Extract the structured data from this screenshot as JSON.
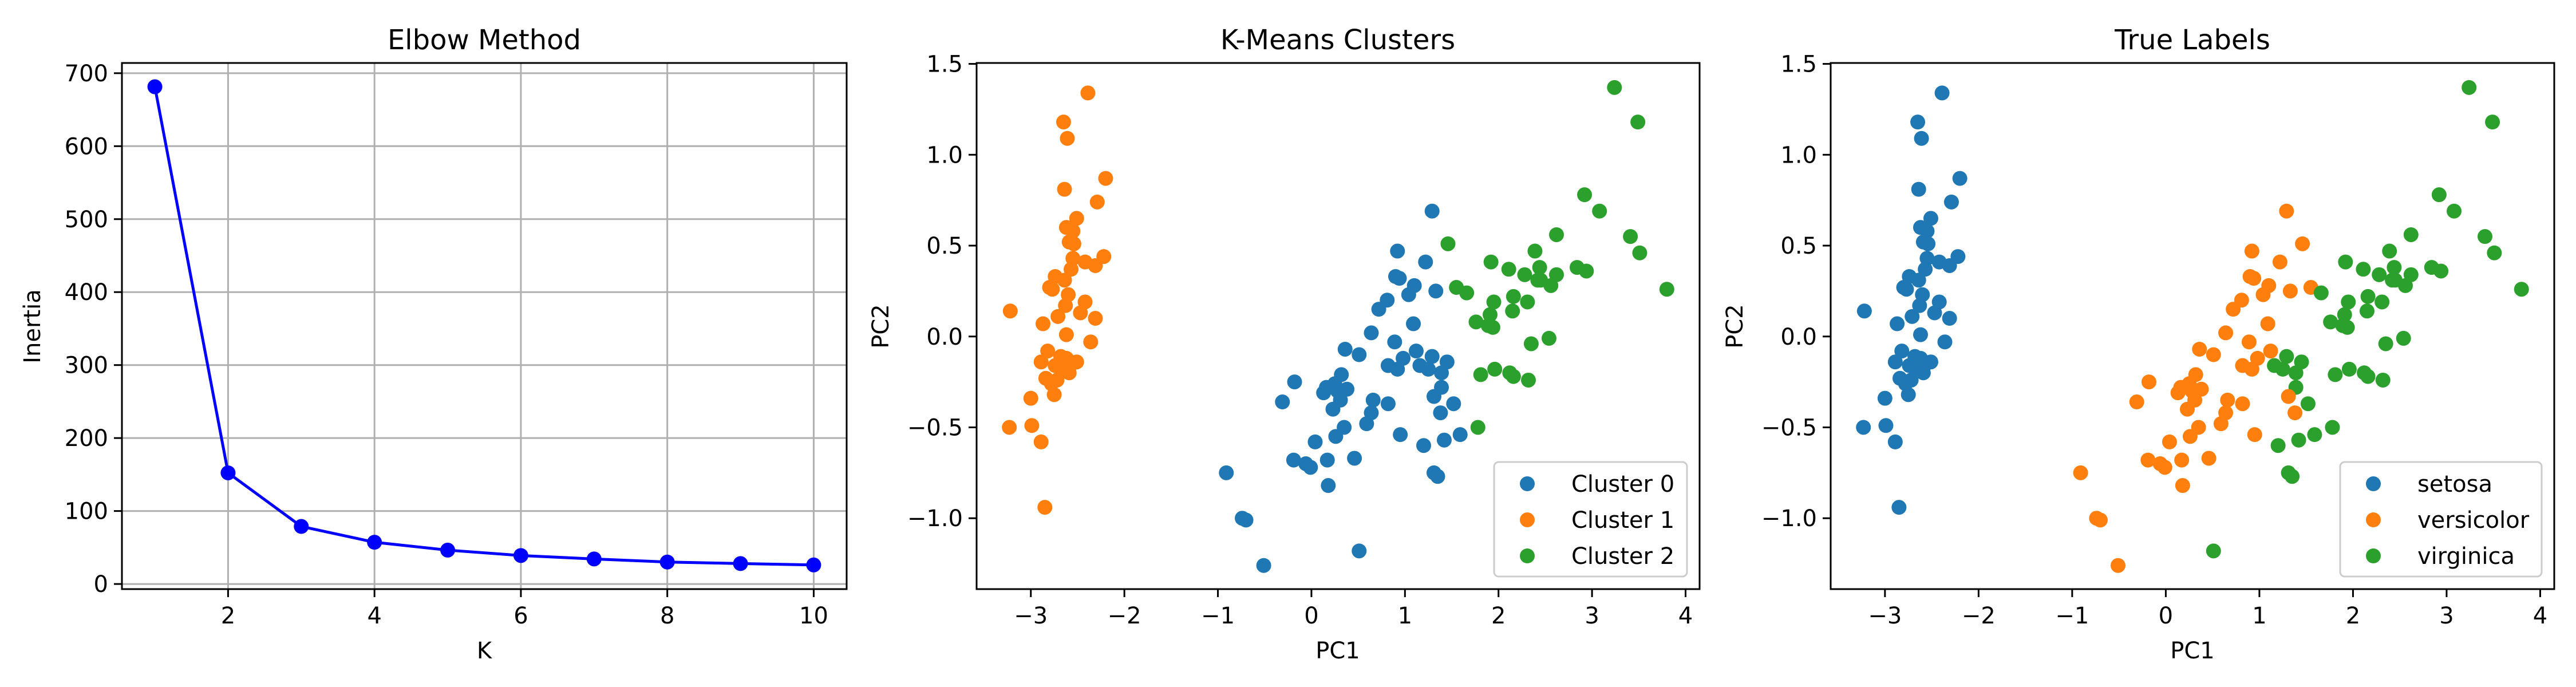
{
  "chart_data": [
    {
      "type": "line",
      "title": "Elbow Method",
      "xlabel": "K",
      "ylabel": "Inertia",
      "x": [
        1,
        2,
        3,
        4,
        5,
        6,
        7,
        8,
        9,
        10
      ],
      "values": [
        681.4,
        152.3,
        78.9,
        57.2,
        46.4,
        39.0,
        34.3,
        30.1,
        28.0,
        26.1
      ],
      "xlim": [
        0.55,
        10.45
      ],
      "ylim": [
        -7,
        714
      ],
      "xticks": [
        2,
        4,
        6,
        8,
        10
      ],
      "yticks": [
        0,
        100,
        200,
        300,
        400,
        500,
        600,
        700
      ],
      "grid": true,
      "color": "#0000ff",
      "marker": "circle"
    },
    {
      "type": "scatter",
      "title": "K-Means Clusters",
      "xlabel": "PC1",
      "ylabel": "PC2",
      "xlim": [
        -3.58,
        4.15
      ],
      "ylim": [
        -1.39,
        1.505
      ],
      "xticks": [
        -3,
        -2,
        -1,
        0,
        1,
        2,
        3,
        4
      ],
      "yticks": [
        -1.0,
        -0.5,
        0.0,
        0.5,
        1.0,
        1.5
      ],
      "grid": false,
      "color_by": "cluster",
      "legend": {
        "placement": "lower-right",
        "entries": [
          "Cluster 0",
          "Cluster 1",
          "Cluster 2"
        ]
      },
      "colors": [
        "#1f77b4",
        "#ff7f0e",
        "#2ca02c"
      ]
    },
    {
      "type": "scatter",
      "title": "True Labels",
      "xlabel": "PC1",
      "ylabel": "PC2",
      "xlim": [
        -3.58,
        4.15
      ],
      "ylim": [
        -1.39,
        1.505
      ],
      "xticks": [
        -3,
        -2,
        -1,
        0,
        1,
        2,
        3,
        4
      ],
      "yticks": [
        -1.0,
        -0.5,
        0.0,
        0.5,
        1.0,
        1.5
      ],
      "grid": false,
      "color_by": "label",
      "legend": {
        "placement": "lower-right",
        "entries": [
          "setosa",
          "versicolor",
          "virginica"
        ]
      },
      "colors": [
        "#1f77b4",
        "#ff7f0e",
        "#2ca02c"
      ]
    }
  ],
  "points_fields": [
    "PC1",
    "PC2",
    "cluster",
    "label"
  ],
  "points": [
    [
      -2.39,
      1.34,
      1,
      0
    ],
    [
      -2.65,
      1.18,
      1,
      0
    ],
    [
      -2.61,
      1.09,
      1,
      0
    ],
    [
      -2.2,
      0.87,
      1,
      0
    ],
    [
      -2.64,
      0.81,
      1,
      0
    ],
    [
      -2.29,
      0.74,
      1,
      0
    ],
    [
      -2.51,
      0.65,
      1,
      0
    ],
    [
      -2.62,
      0.6,
      1,
      0
    ],
    [
      -2.55,
      0.58,
      1,
      0
    ],
    [
      -2.59,
      0.52,
      1,
      0
    ],
    [
      -2.54,
      0.51,
      1,
      0
    ],
    [
      -2.22,
      0.44,
      1,
      0
    ],
    [
      -2.55,
      0.43,
      1,
      0
    ],
    [
      -2.42,
      0.41,
      1,
      0
    ],
    [
      -2.31,
      0.39,
      1,
      0
    ],
    [
      -2.57,
      0.37,
      1,
      0
    ],
    [
      -2.74,
      0.33,
      1,
      0
    ],
    [
      -2.64,
      0.31,
      1,
      0
    ],
    [
      -2.8,
      0.27,
      1,
      0
    ],
    [
      -2.77,
      0.26,
      1,
      0
    ],
    [
      -2.6,
      0.23,
      1,
      0
    ],
    [
      -2.42,
      0.19,
      1,
      0
    ],
    [
      -2.63,
      0.17,
      1,
      0
    ],
    [
      -2.47,
      0.13,
      1,
      0
    ],
    [
      -2.71,
      0.11,
      1,
      0
    ],
    [
      -2.31,
      0.1,
      1,
      0
    ],
    [
      -3.22,
      0.14,
      1,
      0
    ],
    [
      -2.87,
      0.07,
      1,
      0
    ],
    [
      -2.62,
      0.01,
      1,
      0
    ],
    [
      -2.36,
      -0.03,
      1,
      0
    ],
    [
      -2.82,
      -0.08,
      1,
      0
    ],
    [
      -2.89,
      -0.14,
      1,
      0
    ],
    [
      -2.68,
      -0.11,
      1,
      0
    ],
    [
      -2.62,
      -0.12,
      1,
      0
    ],
    [
      -2.51,
      -0.14,
      1,
      0
    ],
    [
      -2.74,
      -0.16,
      1,
      0
    ],
    [
      -2.59,
      -0.2,
      1,
      0
    ],
    [
      -2.84,
      -0.23,
      1,
      0
    ],
    [
      -2.72,
      -0.24,
      1,
      0
    ],
    [
      -2.75,
      -0.32,
      1,
      0
    ],
    [
      -3.0,
      -0.34,
      1,
      0
    ],
    [
      -3.23,
      -0.5,
      1,
      0
    ],
    [
      -2.99,
      -0.49,
      1,
      0
    ],
    [
      -2.89,
      -0.58,
      1,
      0
    ],
    [
      -2.85,
      -0.94,
      1,
      0
    ],
    [
      -2.66,
      -0.18,
      1,
      0
    ],
    [
      -2.78,
      -0.26,
      1,
      0
    ],
    [
      -2.69,
      -0.16,
      1,
      0
    ],
    [
      -2.58,
      -0.16,
      1,
      0
    ],
    [
      -2.65,
      -0.14,
      1,
      0
    ],
    [
      1.29,
      0.69,
      0,
      1
    ],
    [
      0.92,
      0.47,
      0,
      1
    ],
    [
      1.22,
      0.41,
      0,
      1
    ],
    [
      0.9,
      0.33,
      0,
      1
    ],
    [
      0.94,
      0.32,
      0,
      1
    ],
    [
      1.1,
      0.28,
      0,
      1
    ],
    [
      1.04,
      0.23,
      0,
      1
    ],
    [
      1.33,
      0.25,
      0,
      1
    ],
    [
      0.81,
      0.2,
      0,
      1
    ],
    [
      0.72,
      0.15,
      0,
      1
    ],
    [
      1.09,
      0.07,
      0,
      1
    ],
    [
      0.64,
      0.02,
      0,
      1
    ],
    [
      0.89,
      -0.03,
      0,
      1
    ],
    [
      0.36,
      -0.07,
      0,
      1
    ],
    [
      0.51,
      -0.1,
      0,
      1
    ],
    [
      1.12,
      -0.08,
      0,
      1
    ],
    [
      0.98,
      -0.12,
      0,
      1
    ],
    [
      0.82,
      -0.16,
      0,
      1
    ],
    [
      0.92,
      -0.18,
      0,
      1
    ],
    [
      1.16,
      -0.16,
      0,
      2
    ],
    [
      1.29,
      -0.11,
      0,
      2
    ],
    [
      1.45,
      -0.14,
      0,
      2
    ],
    [
      1.25,
      -0.18,
      0,
      2
    ],
    [
      1.39,
      -0.2,
      0,
      2
    ],
    [
      0.32,
      -0.21,
      0,
      1
    ],
    [
      -0.18,
      -0.25,
      0,
      1
    ],
    [
      0.25,
      -0.26,
      0,
      1
    ],
    [
      0.13,
      -0.31,
      0,
      1
    ],
    [
      0.28,
      -0.3,
      0,
      1
    ],
    [
      0.38,
      -0.29,
      0,
      1
    ],
    [
      0.31,
      -0.35,
      0,
      1
    ],
    [
      1.39,
      -0.28,
      0,
      2
    ],
    [
      1.31,
      -0.33,
      0,
      1
    ],
    [
      1.52,
      -0.37,
      0,
      2
    ],
    [
      -0.31,
      -0.36,
      0,
      1
    ],
    [
      0.66,
      -0.35,
      0,
      1
    ],
    [
      0.82,
      -0.37,
      0,
      1
    ],
    [
      0.23,
      -0.4,
      0,
      1
    ],
    [
      0.64,
      -0.42,
      0,
      1
    ],
    [
      1.38,
      -0.42,
      0,
      1
    ],
    [
      0.35,
      -0.5,
      0,
      1
    ],
    [
      0.59,
      -0.48,
      0,
      1
    ],
    [
      0.26,
      -0.55,
      0,
      1
    ],
    [
      0.95,
      -0.54,
      0,
      1
    ],
    [
      1.59,
      -0.54,
      0,
      2
    ],
    [
      0.04,
      -0.58,
      0,
      1
    ],
    [
      1.42,
      -0.57,
      0,
      2
    ],
    [
      1.2,
      -0.6,
      0,
      2
    ],
    [
      -0.19,
      -0.68,
      0,
      1
    ],
    [
      -0.06,
      -0.7,
      0,
      1
    ],
    [
      -0.01,
      -0.72,
      0,
      1
    ],
    [
      0.17,
      -0.68,
      0,
      1
    ],
    [
      0.46,
      -0.67,
      0,
      1
    ],
    [
      1.31,
      -0.75,
      0,
      2
    ],
    [
      1.35,
      -0.77,
      0,
      2
    ],
    [
      0.18,
      -0.82,
      0,
      1
    ],
    [
      -0.91,
      -0.75,
      0,
      1
    ],
    [
      -0.74,
      -1.0,
      0,
      1
    ],
    [
      -0.7,
      -1.01,
      0,
      1
    ],
    [
      -0.51,
      -1.26,
      0,
      1
    ],
    [
      0.51,
      -1.18,
      0,
      2
    ],
    [
      0.16,
      -0.28,
      0,
      1
    ],
    [
      3.24,
      1.37,
      2,
      2
    ],
    [
      3.49,
      1.18,
      2,
      2
    ],
    [
      2.92,
      0.78,
      2,
      2
    ],
    [
      3.08,
      0.69,
      2,
      2
    ],
    [
      1.46,
      0.51,
      2,
      1
    ],
    [
      3.41,
      0.55,
      2,
      2
    ],
    [
      2.62,
      0.56,
      2,
      2
    ],
    [
      3.51,
      0.46,
      2,
      2
    ],
    [
      1.92,
      0.41,
      2,
      2
    ],
    [
      2.11,
      0.37,
      2,
      2
    ],
    [
      2.39,
      0.47,
      2,
      2
    ],
    [
      2.44,
      0.38,
      2,
      2
    ],
    [
      2.28,
      0.34,
      2,
      2
    ],
    [
      2.62,
      0.34,
      2,
      2
    ],
    [
      2.84,
      0.38,
      2,
      2
    ],
    [
      2.94,
      0.36,
      2,
      2
    ],
    [
      2.42,
      0.31,
      2,
      2
    ],
    [
      2.56,
      0.28,
      2,
      2
    ],
    [
      1.55,
      0.27,
      2,
      1
    ],
    [
      1.66,
      0.24,
      2,
      2
    ],
    [
      3.8,
      0.26,
      2,
      2
    ],
    [
      1.95,
      0.19,
      2,
      2
    ],
    [
      2.16,
      0.22,
      2,
      2
    ],
    [
      2.31,
      0.19,
      2,
      2
    ],
    [
      2.15,
      0.14,
      2,
      2
    ],
    [
      1.91,
      0.12,
      2,
      2
    ],
    [
      1.76,
      0.08,
      2,
      2
    ],
    [
      1.94,
      0.05,
      2,
      2
    ],
    [
      1.89,
      0.06,
      2,
      2
    ],
    [
      2.35,
      -0.04,
      2,
      2
    ],
    [
      2.54,
      -0.01,
      2,
      2
    ],
    [
      1.81,
      -0.21,
      2,
      2
    ],
    [
      1.96,
      -0.18,
      2,
      2
    ],
    [
      2.12,
      -0.2,
      2,
      2
    ],
    [
      2.16,
      -0.22,
      2,
      2
    ],
    [
      2.32,
      -0.24,
      2,
      2
    ],
    [
      1.78,
      -0.5,
      2,
      2
    ],
    [
      2.45,
      0.31,
      2,
      2
    ]
  ]
}
